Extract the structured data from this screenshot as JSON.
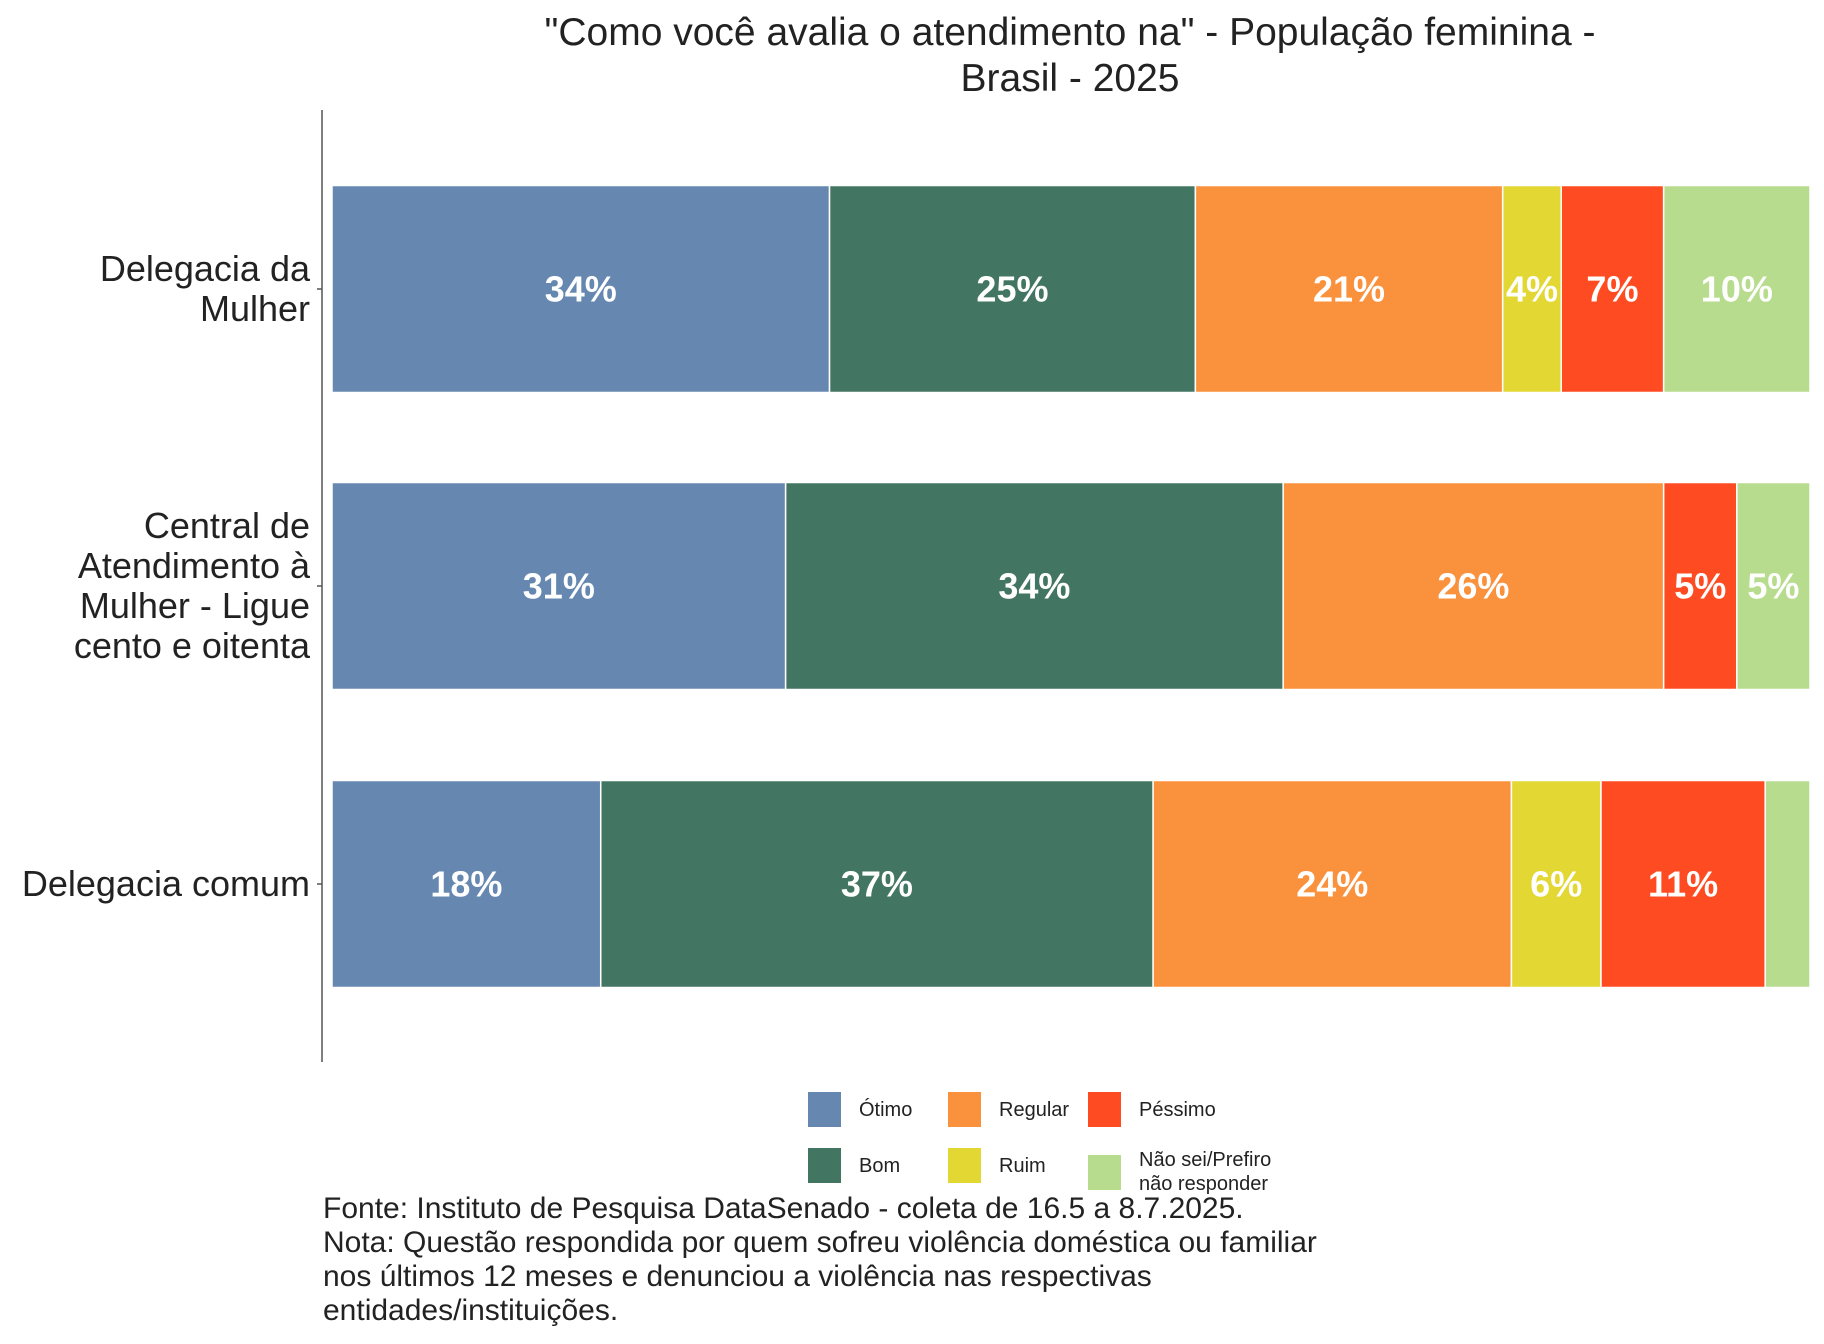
{
  "chart_data": {
    "type": "bar",
    "orientation": "horizontal",
    "stacked": true,
    "stack_mode": "percent",
    "title_lines": [
      "\"Como você avalia o atendimento na\" - População feminina -",
      "Brasil - 2025"
    ],
    "categories": [
      {
        "lines": [
          "Delegacia da",
          "Mulher"
        ]
      },
      {
        "lines": [
          "Central de",
          "Atendimento à",
          "Mulher - Ligue",
          "cento e oitenta"
        ]
      },
      {
        "lines": [
          "Delegacia comum"
        ]
      }
    ],
    "series": [
      {
        "name": "Ótimo",
        "color": "#6688b0",
        "values": [
          34,
          31,
          18
        ],
        "labels": [
          "34%",
          "31%",
          "18%"
        ]
      },
      {
        "name": "Bom",
        "color": "#437563",
        "values": [
          25,
          34,
          37
        ],
        "labels": [
          "25%",
          "34%",
          "37%"
        ]
      },
      {
        "name": "Regular",
        "color": "#fa913c",
        "values": [
          21,
          26,
          24
        ],
        "labels": [
          "21%",
          "26%",
          "24%"
        ]
      },
      {
        "name": "Ruim",
        "color": "#e3d734",
        "values": [
          4,
          0,
          6
        ],
        "labels": [
          "4%",
          "",
          "6%"
        ]
      },
      {
        "name": "Péssimo",
        "color": "#fe4b22",
        "values": [
          7,
          5,
          11
        ],
        "labels": [
          "7%",
          "5%",
          "11%"
        ]
      },
      {
        "name": "Não sei/Prefiro não responder",
        "legend_lines": [
          "Não sei/Prefiro",
          "não responder"
        ],
        "color": "#b8dc8e",
        "values": [
          10,
          5,
          3
        ],
        "labels": [
          "10%",
          "5%",
          ""
        ]
      }
    ],
    "xlim": [
      0,
      100
    ],
    "xlabel": "",
    "ylabel": "",
    "grid": false,
    "legend_position": "bottom",
    "caption_lines": [
      "Fonte: Instituto de Pesquisa DataSenado - coleta de 16.5 a 8.7.2025.",
      "Nota: Questão respondida por quem sofreu violência doméstica ou familiar",
      "nos últimos 12 meses e denunciou a violência nas respectivas",
      "entidades/instituições."
    ]
  }
}
